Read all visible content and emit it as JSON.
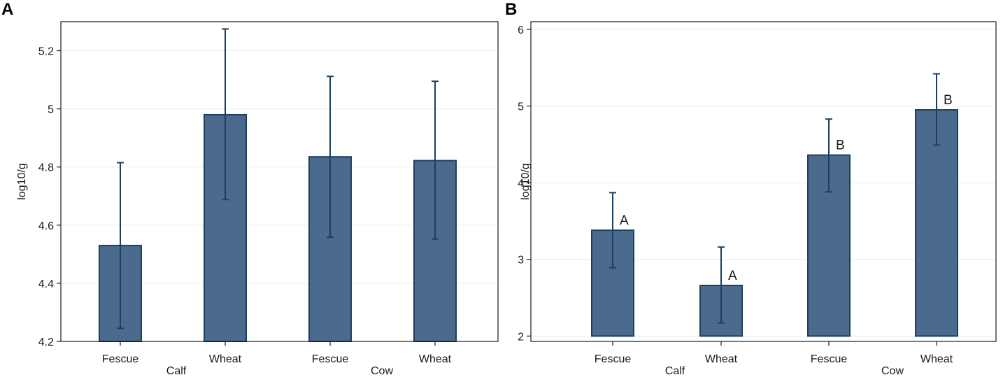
{
  "chart_data": [
    {
      "panel": "A",
      "type": "bar",
      "ylabel": "log10/g",
      "ylim": [
        4.2,
        5.3
      ],
      "yticks": [
        4.2,
        4.4,
        4.6,
        4.8,
        5,
        5.2
      ],
      "grid": true,
      "categories": [
        "Fescue",
        "Wheat",
        "Fescue",
        "Wheat"
      ],
      "groups": [
        "Calf",
        "Cow"
      ],
      "values": [
        4.53,
        4.98,
        4.835,
        4.822
      ],
      "error_low": [
        4.245,
        4.688,
        4.558,
        4.552
      ],
      "error_high": [
        4.815,
        5.275,
        5.112,
        5.095
      ],
      "annotations": [
        "",
        "",
        "",
        ""
      ],
      "bar_color": "#4a6b8e",
      "edge_color": "#1f3f5f"
    },
    {
      "panel": "B",
      "type": "bar",
      "ylabel": "log10/g",
      "ylim": [
        1.93,
        6.1
      ],
      "yticks": [
        2,
        3,
        4,
        5,
        6
      ],
      "grid": true,
      "categories": [
        "Fescue",
        "Wheat",
        "Fescue",
        "Wheat"
      ],
      "groups": [
        "Calf",
        "Cow"
      ],
      "values": [
        3.38,
        2.66,
        4.36,
        4.95
      ],
      "error_low": [
        2.89,
        2.17,
        3.88,
        4.49
      ],
      "error_high": [
        3.87,
        3.16,
        4.83,
        5.42
      ],
      "annotations": [
        "A",
        "A",
        "B",
        "B"
      ],
      "bar_color": "#4a6b8e",
      "edge_color": "#1f3f5f"
    }
  ],
  "panel_letters": [
    "A",
    "B"
  ]
}
